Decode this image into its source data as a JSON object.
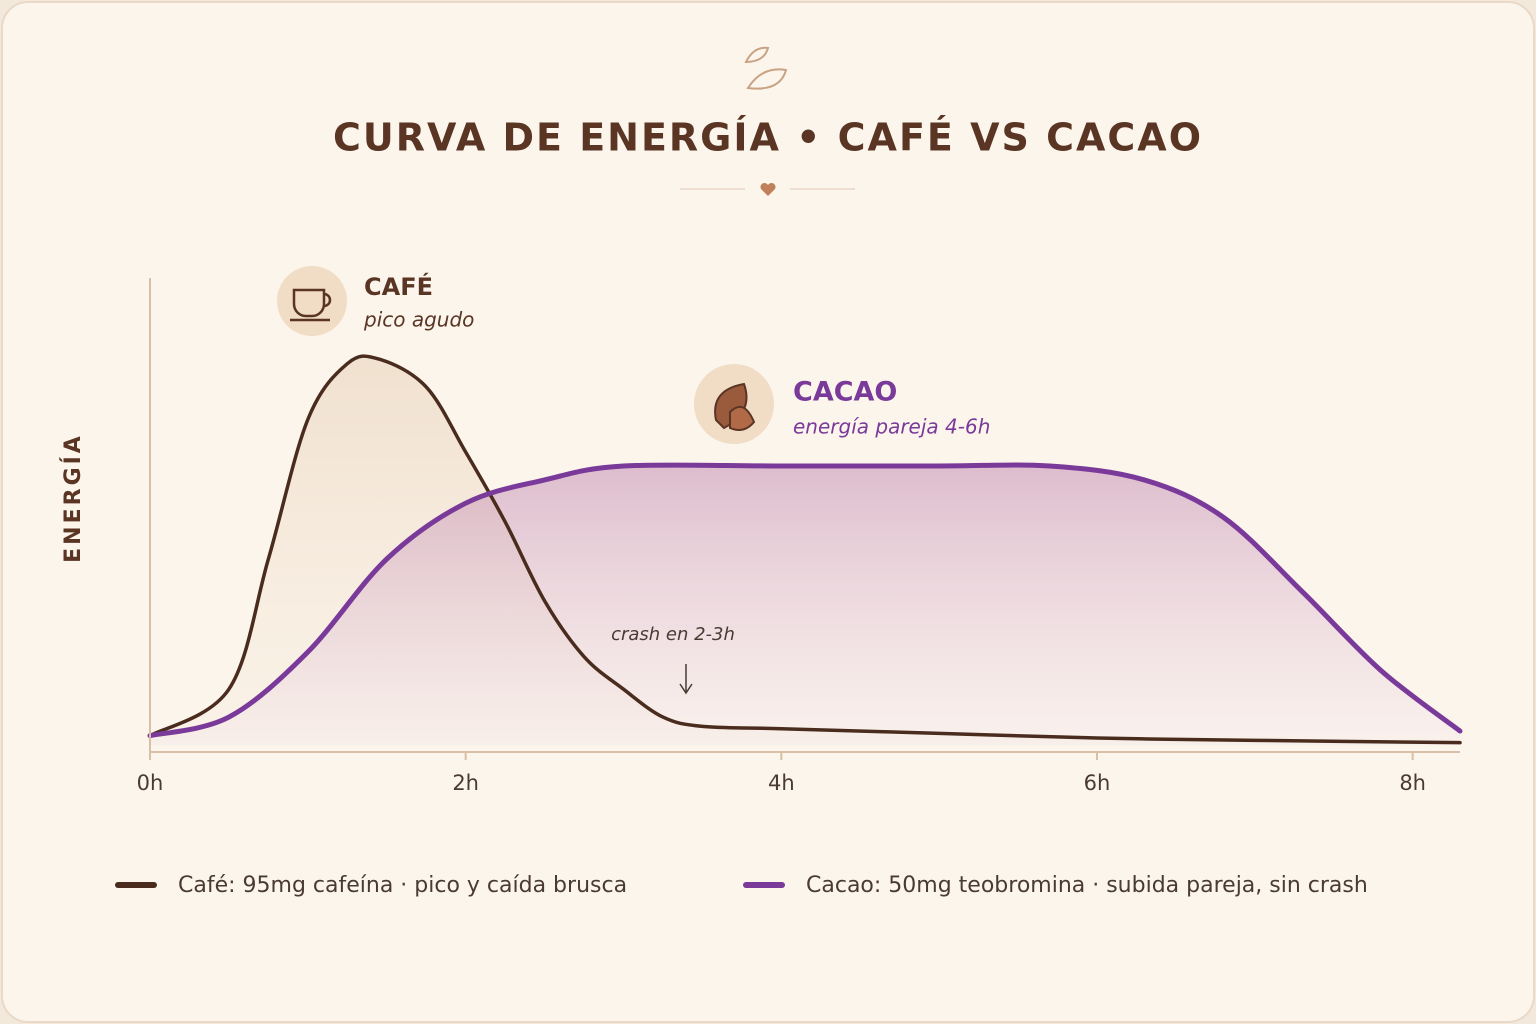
{
  "chart_data": {
    "type": "line",
    "title": "CURVA DE ENERGÍA • CAFÉ VS CACAO",
    "y_label": "ENERGÍA",
    "xlim": [
      0,
      8.3
    ],
    "ylim": [
      0,
      100
    ],
    "xticks": [
      {
        "value": 0,
        "label": "0h"
      },
      {
        "value": 2,
        "label": "2h"
      },
      {
        "value": 4,
        "label": "4h"
      },
      {
        "value": 6,
        "label": "6h"
      },
      {
        "value": 8,
        "label": "8h"
      }
    ],
    "grid": false,
    "series": [
      {
        "name": "Café: 95mg cafeína · pico y caída brusca",
        "color": "#4a2c1e",
        "x": [
          0,
          0.5,
          0.75,
          1.0,
          1.25,
          1.45,
          1.75,
          2.0,
          2.25,
          2.5,
          2.75,
          3.0,
          3.25,
          3.5,
          4,
          5,
          6,
          7,
          8.3
        ],
        "values": [
          2,
          12,
          40,
          70,
          82,
          83,
          77,
          63,
          48,
          31,
          19,
          12,
          6,
          4,
          3.5,
          2.5,
          1.5,
          1,
          0.5
        ]
      },
      {
        "name": "Cacao: 50mg teobromina · subida pareja, sin crash",
        "color": "#7a3a9a",
        "x": [
          0,
          0.5,
          1.0,
          1.5,
          2.0,
          2.5,
          3.0,
          4,
          5,
          5.7,
          6.3,
          6.8,
          7.3,
          7.8,
          8.3
        ],
        "values": [
          2,
          6,
          20,
          40,
          52,
          57,
          60,
          60,
          60,
          60,
          57,
          49,
          33,
          16,
          3
        ]
      }
    ],
    "annotations": [
      {
        "title": "CAFÉ",
        "text": "pico agudo"
      },
      {
        "title": "CACAO",
        "text": "energía pareja 4-6h"
      },
      {
        "text": "crash en 2-3h"
      }
    ]
  }
}
